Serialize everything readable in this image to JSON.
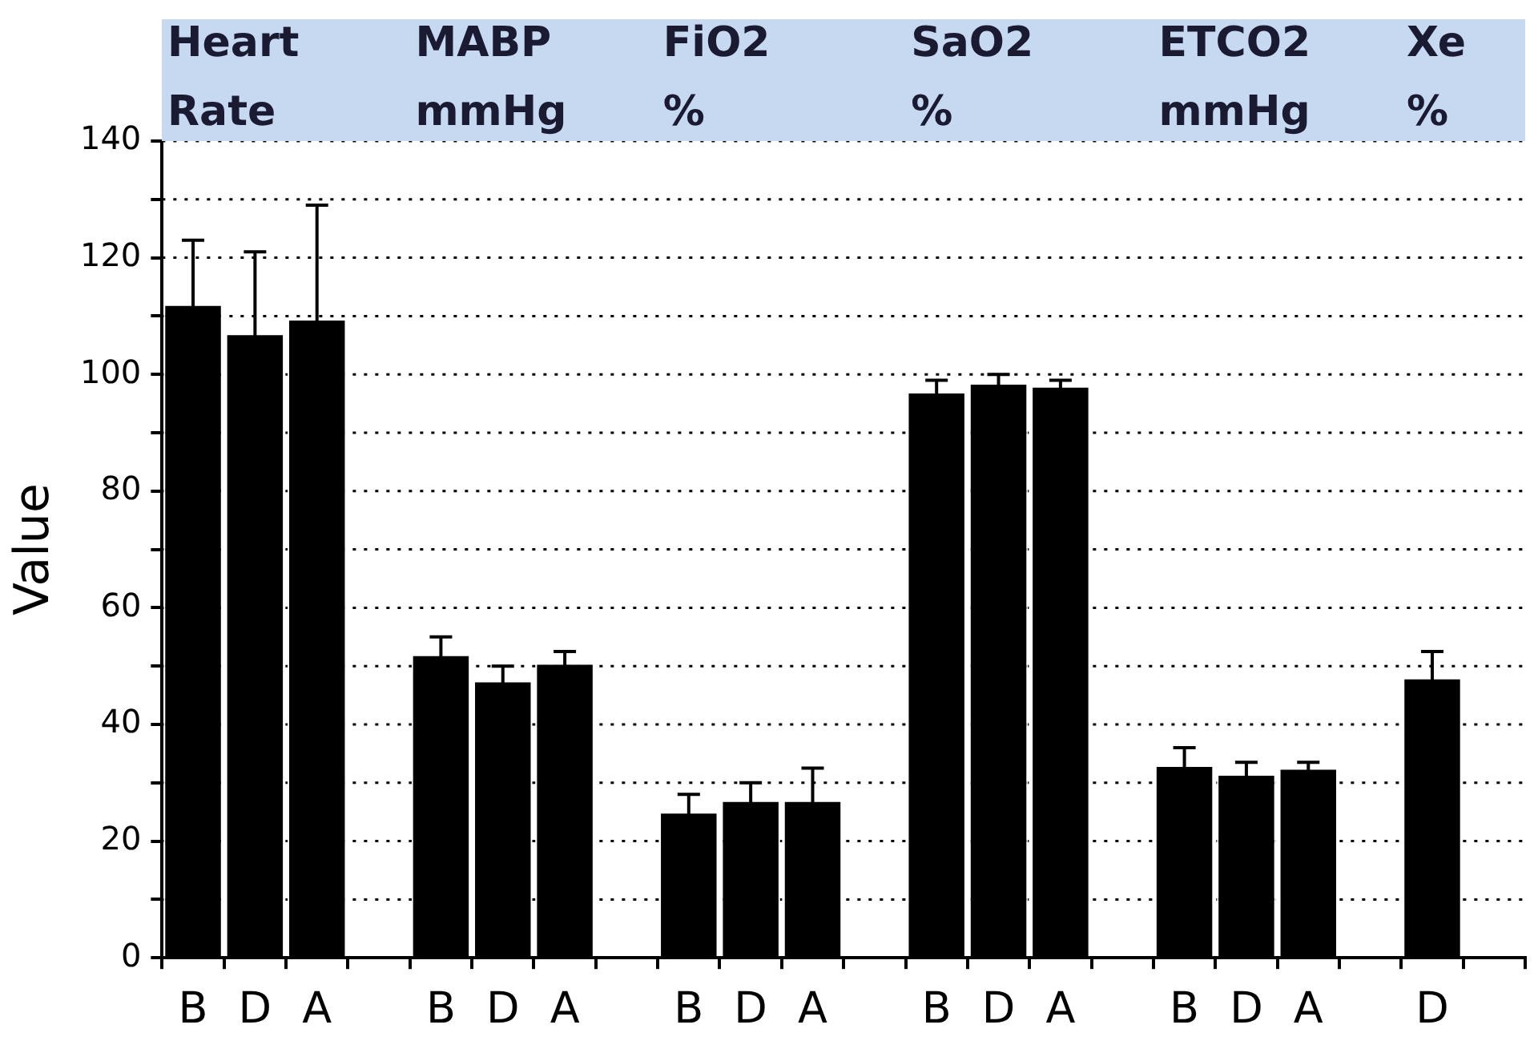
{
  "chart_data": {
    "type": "bar",
    "ylabel": "Value",
    "categories": [
      "B",
      "D",
      "A",
      null,
      "B",
      "D",
      "A",
      null,
      "B",
      "D",
      "A",
      null,
      "B",
      "D",
      "A",
      null,
      "B",
      "D",
      "A",
      null,
      "D",
      null
    ],
    "values": [
      112,
      107,
      109.5,
      null,
      52,
      47.5,
      50.5,
      null,
      25,
      27,
      27,
      null,
      97,
      98.5,
      98,
      null,
      33,
      31.5,
      32.5,
      null,
      48,
      null
    ],
    "errors": [
      11,
      14,
      19.5,
      null,
      3,
      2.5,
      2,
      null,
      3,
      3,
      5.5,
      null,
      2,
      1.5,
      1,
      null,
      3,
      2,
      1,
      null,
      4.5,
      null
    ],
    "color": "#000000",
    "ylim": [
      0,
      140
    ],
    "yticks": [
      0,
      {
        "value": 10,
        "label": null
      },
      20,
      {
        "value": 30,
        "label": null
      },
      40,
      {
        "value": 50,
        "label": null
      },
      60,
      {
        "value": 70,
        "label": null
      },
      80,
      {
        "value": 90,
        "label": null
      },
      100,
      {
        "value": 110,
        "label": null
      },
      120,
      {
        "value": 130,
        "label": null
      },
      140
    ],
    "grid": "y",
    "line_style": "dotted",
    "legend": false,
    "annotations": [
      "Heart Rate",
      "MABP mmHg",
      "FiO2 %",
      "SaO2 %",
      "ETCO2 mmHg",
      "Xe %"
    ]
  }
}
